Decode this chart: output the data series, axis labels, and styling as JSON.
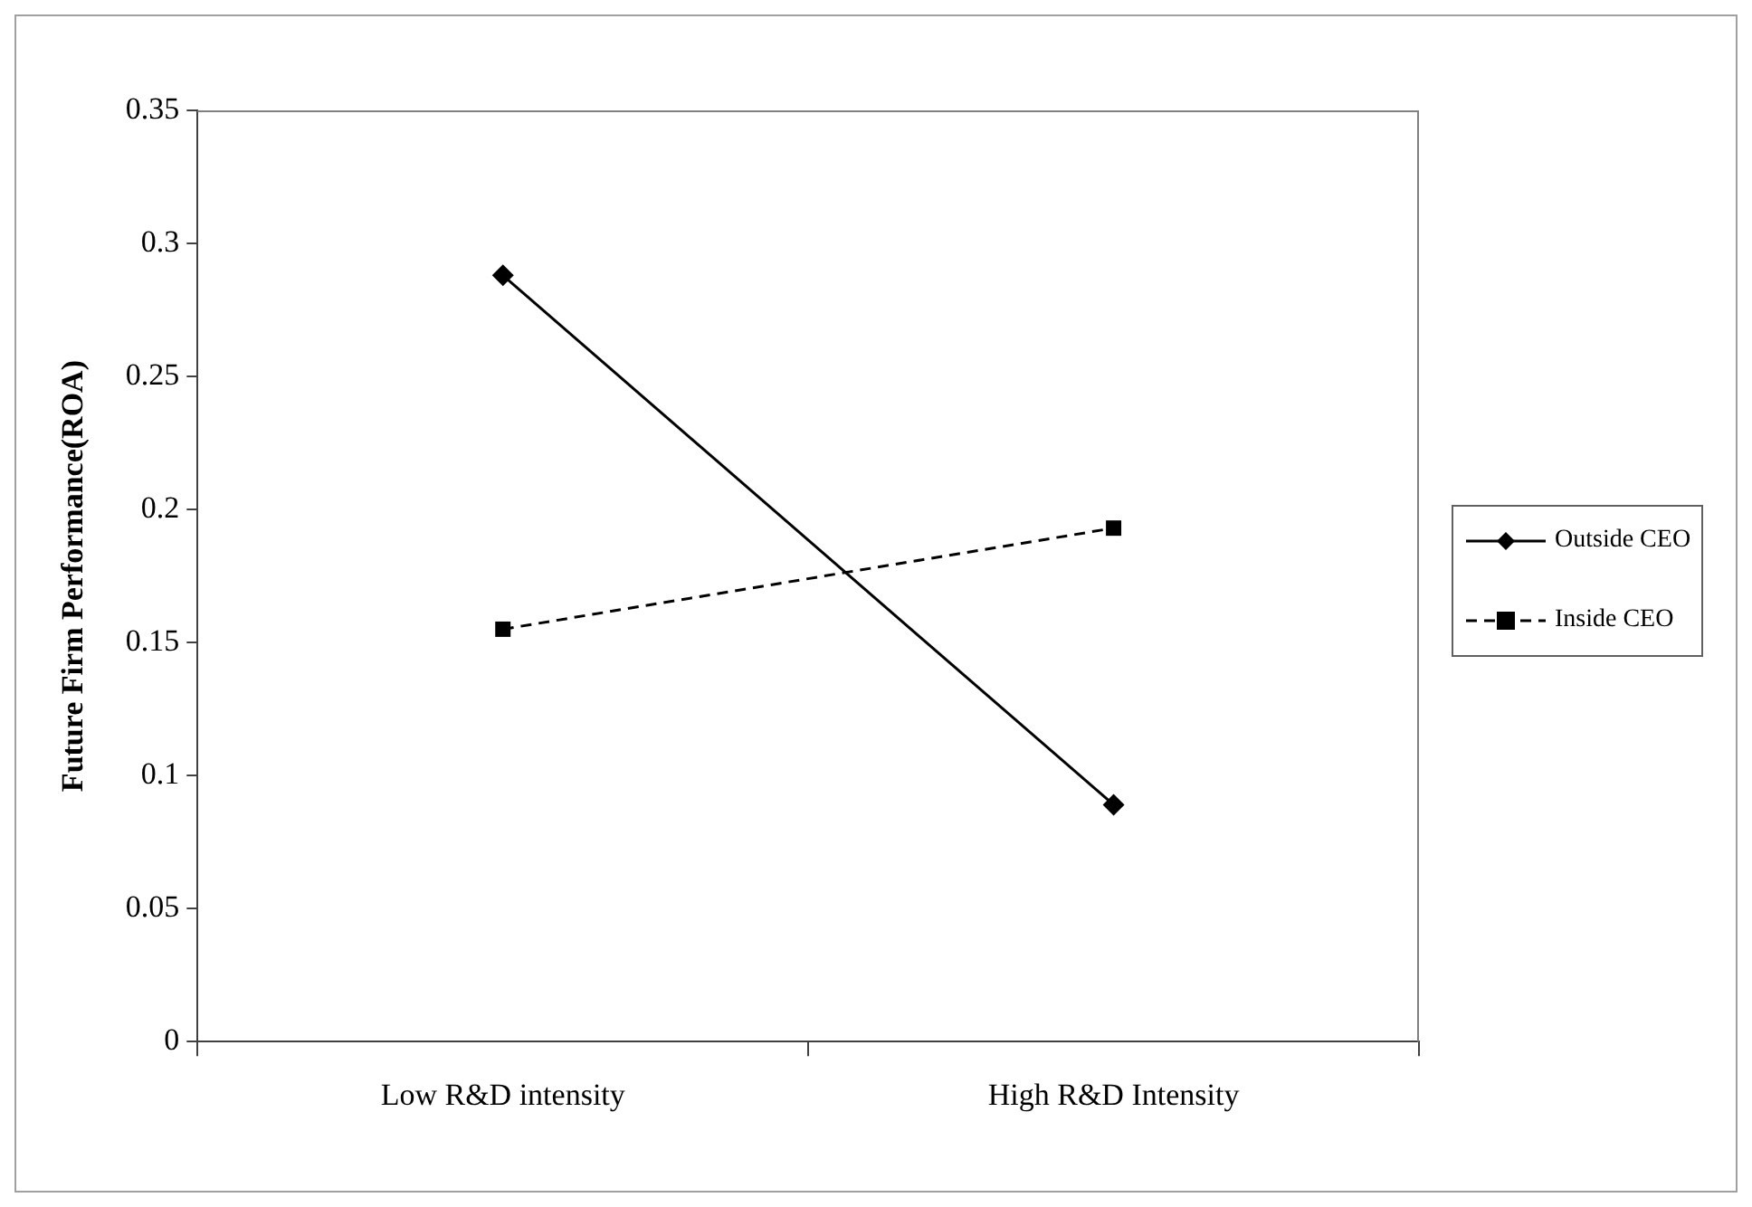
{
  "chart_data": {
    "type": "line",
    "ylabel": "Future Firm Performance(ROA)",
    "categories": [
      "Low R&D intensity",
      "High R&D Intensity"
    ],
    "series": [
      {
        "name": "Outside CEO",
        "color": "#000000",
        "values": [
          0.288,
          0.089
        ],
        "marker": "diamond",
        "line_style": "solid"
      },
      {
        "name": "Inside CEO",
        "color": "#000000",
        "values": [
          0.155,
          0.193
        ],
        "marker": "square",
        "line_style": "dashed"
      }
    ],
    "ylim": [
      0,
      0.35
    ],
    "yticks": [
      0,
      0.05,
      0.1,
      0.15,
      0.2,
      0.25,
      0.3,
      0.35
    ],
    "grid": false,
    "legend": "right"
  }
}
